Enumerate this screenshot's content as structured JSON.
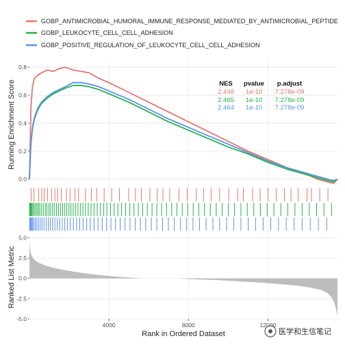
{
  "chart_data": {
    "type": "line",
    "panels": [
      "running-enrichment-score",
      "hit-positions",
      "ranked-list-metric"
    ],
    "xlabel": "Rank in Ordered Dataset",
    "xlim": [
      0,
      15500
    ],
    "x_ticks": [
      4000,
      8000,
      12000
    ],
    "x_tick_labels": [
      "4000",
      "8000",
      "12000"
    ],
    "legend_position": "top",
    "series": [
      {
        "name": "GOBP_ANTIMICROBIAL_HUMORAL_IMMUNE_RESPONSE_MEDIATED_BY_ANTIMICROBIAL_PEPTIDE",
        "color": "#E8736C",
        "x": [
          0,
          40,
          80,
          150,
          250,
          400,
          600,
          900,
          1200,
          1500,
          1800,
          2200,
          2600,
          3000,
          3500,
          4000,
          5000,
          6000,
          7000,
          8000,
          9000,
          10000,
          11000,
          12000,
          13000,
          14000,
          14500,
          15000,
          15300,
          15500
        ],
        "y": [
          0.0,
          0.28,
          0.52,
          0.66,
          0.72,
          0.74,
          0.76,
          0.78,
          0.77,
          0.79,
          0.8,
          0.78,
          0.77,
          0.76,
          0.72,
          0.69,
          0.62,
          0.55,
          0.48,
          0.41,
          0.34,
          0.27,
          0.2,
          0.14,
          0.08,
          0.03,
          0.0,
          -0.02,
          -0.03,
          0.0
        ],
        "hits": [
          90,
          230,
          460,
          620,
          740,
          910,
          1110,
          1280,
          1420,
          1600,
          1860,
          2040,
          2290,
          2470,
          2820,
          3120,
          3390,
          3760,
          4140,
          4530,
          4990,
          5330,
          5630,
          6060,
          6430,
          6720,
          7060,
          7520,
          7940,
          8390,
          8760,
          9140,
          9570,
          10030,
          10480,
          10760,
          11230,
          11610,
          12010,
          12420,
          12830,
          13160,
          13520,
          13970,
          14190,
          14610,
          15020
        ]
      },
      {
        "name": "GOBP_LEUKOCYTE_CELL_CELL_ADHESION",
        "color": "#22B14C",
        "x": [
          0,
          40,
          80,
          150,
          250,
          400,
          600,
          900,
          1200,
          1500,
          1800,
          2200,
          2600,
          3000,
          3500,
          4000,
          5000,
          6000,
          7000,
          8000,
          9000,
          10000,
          11000,
          12000,
          13000,
          14000,
          14500,
          15000,
          15300,
          15500
        ],
        "y": [
          0.0,
          0.15,
          0.26,
          0.36,
          0.43,
          0.49,
          0.54,
          0.58,
          0.61,
          0.63,
          0.65,
          0.67,
          0.67,
          0.66,
          0.64,
          0.61,
          0.55,
          0.48,
          0.41,
          0.35,
          0.29,
          0.23,
          0.18,
          0.12,
          0.07,
          0.03,
          0.01,
          -0.01,
          -0.02,
          0.0
        ],
        "hits": [
          10,
          30,
          60,
          90,
          130,
          180,
          240,
          310,
          380,
          450,
          520,
          610,
          700,
          800,
          880,
          980,
          1060,
          1160,
          1250,
          1360,
          1460,
          1560,
          1670,
          1780,
          1880,
          1990,
          2090,
          2200,
          2320,
          2440,
          2560,
          2690,
          2820,
          2960,
          3100,
          3250,
          3410,
          3570,
          3740,
          3900,
          4080,
          4260,
          4450,
          4640,
          4840,
          5050,
          5260,
          5480,
          5700,
          5930,
          6170,
          6410,
          6650,
          6900,
          7160,
          7420,
          7690,
          7960,
          8240,
          8520,
          8810,
          9100,
          9400,
          9700,
          10010,
          10320,
          10640,
          10960,
          11290,
          11620,
          11960,
          12300,
          12650,
          13000,
          13360,
          13720,
          14080,
          14450,
          14820,
          15200
        ]
      },
      {
        "name": "GOBP_POSITIVE_REGULATION_OF_LEUKOCYTE_CELL_CELL_ADHESION",
        "color": "#5B8FE8",
        "x": [
          0,
          40,
          80,
          150,
          250,
          400,
          600,
          900,
          1200,
          1500,
          1800,
          2200,
          2600,
          3000,
          3500,
          4000,
          5000,
          6000,
          7000,
          8000,
          9000,
          10000,
          11000,
          12000,
          13000,
          14000,
          14500,
          15000,
          15300,
          15500
        ],
        "y": [
          0.0,
          0.16,
          0.27,
          0.37,
          0.44,
          0.5,
          0.55,
          0.59,
          0.62,
          0.64,
          0.66,
          0.69,
          0.69,
          0.68,
          0.66,
          0.63,
          0.57,
          0.5,
          0.43,
          0.37,
          0.31,
          0.25,
          0.19,
          0.13,
          0.08,
          0.04,
          0.02,
          0.0,
          -0.01,
          0.0
        ],
        "hits": [
          15,
          40,
          75,
          110,
          160,
          220,
          290,
          370,
          450,
          540,
          630,
          730,
          840,
          950,
          1050,
          1160,
          1280,
          1400,
          1520,
          1650,
          1780,
          1920,
          2060,
          2210,
          2370,
          2530,
          2700,
          2880,
          3060,
          3250,
          3450,
          3660,
          3880,
          4100,
          4330,
          4570,
          4810,
          5060,
          5320,
          5580,
          5850,
          6130,
          6410,
          6700,
          6990,
          7290,
          7600,
          7910,
          8230,
          8560,
          8890,
          9230,
          9570,
          9920,
          10280,
          10640,
          11010,
          11380,
          11760,
          12140,
          12530,
          12920,
          13320,
          13720,
          14130,
          14540,
          14960
        ]
      }
    ],
    "running_score_panel": {
      "ylabel": "Running Enrichment Score",
      "ylim": [
        -0.06,
        0.84
      ],
      "y_ticks": [
        0.0,
        0.2,
        0.4,
        0.6,
        0.8
      ],
      "y_tick_labels": [
        "0.0",
        "0.2",
        "0.4",
        "0.6",
        "0.8"
      ],
      "grid": true
    },
    "ranked_metric_panel": {
      "ylabel": "Ranked List Metric",
      "ylim": [
        -5.0,
        5.8
      ],
      "y_ticks": [
        -5.0,
        -2.5,
        0.0,
        2.5,
        5.0
      ],
      "y_tick_labels": [
        "-5.0",
        "-2.5",
        "0.0",
        "2.5",
        "5.0"
      ],
      "fill_color": "#BDBDBD",
      "x": [
        0,
        30,
        80,
        150,
        300,
        500,
        800,
        1200,
        1700,
        2300,
        3000,
        3800,
        4600,
        5400,
        5500,
        7600,
        7700,
        8500,
        9500,
        10500,
        11500,
        12500,
        13500,
        14200,
        14700,
        15000,
        15200,
        15350,
        15450,
        15500
      ],
      "values": [
        4.8,
        3.6,
        3.0,
        2.6,
        2.2,
        1.9,
        1.6,
        1.3,
        1.05,
        0.8,
        0.55,
        0.35,
        0.18,
        0.05,
        0.0,
        0.0,
        -0.05,
        -0.12,
        -0.22,
        -0.35,
        -0.5,
        -0.68,
        -0.9,
        -1.15,
        -1.45,
        -1.8,
        -2.3,
        -3.0,
        -4.0,
        -4.7
      ]
    },
    "stats_table": {
      "headers": [
        "NES",
        "pvalue",
        "p.adjust"
      ],
      "rows": [
        {
          "color": "#E8736C",
          "cells": [
            "2.448",
            "1e-10",
            "7.278e-09"
          ]
        },
        {
          "color": "#22B14C",
          "cells": [
            "2.465",
            "1e-10",
            "7.278e-09"
          ]
        },
        {
          "color": "#5B8FE8",
          "cells": [
            "2.464",
            "1e-10",
            "7.278e-09"
          ]
        }
      ]
    }
  },
  "watermark": {
    "text": "医学和生信笔记"
  }
}
